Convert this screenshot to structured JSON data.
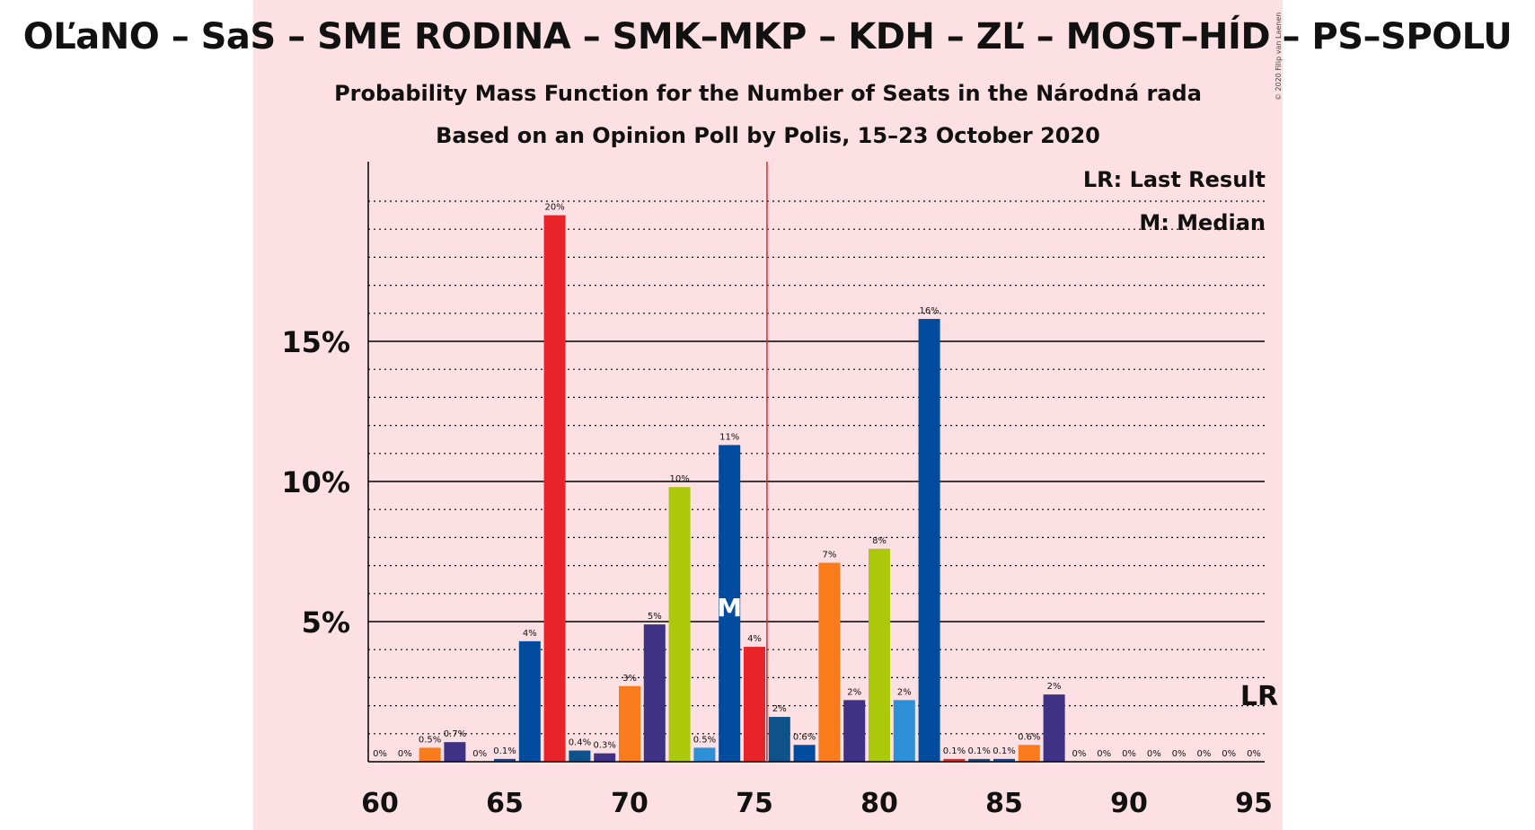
{
  "header": {
    "title": "OĽaNO – SaS – SME RODINA – SMK–MKP – KDH – ZĽ – MOST–HÍD – PS–SPOLU",
    "subtitle_1": "Probability Mass Function for the Number of Seats in the Národná rada",
    "subtitle_2": "Based on an Opinion Poll by Polis, 15–23 October 2020",
    "copyright": "© 2020 Filip van Laenen"
  },
  "legend": {
    "lr": "LR: Last Result",
    "median": "M: Median"
  },
  "colors": {
    "background_panel": "#fde0e3",
    "majority_line": "#e8232a",
    "median_marker": "#ffffff",
    "party_colors": {
      "olano": "#024ca0",
      "sas": "#e8232a",
      "sme_rodina": "#3f3186",
      "smk": "#2d8fd5",
      "kdh": "#f97b1c",
      "zl": "#acc80a",
      "most": "#0e5289"
    }
  },
  "chart_data": {
    "type": "bar",
    "xlabel": "",
    "ylabel": "",
    "x_ticks": [
      "60",
      "65",
      "70",
      "75",
      "80",
      "85",
      "90",
      "95"
    ],
    "y_ticks": [
      "5%",
      "10%",
      "15%"
    ],
    "xlim": [
      60,
      95
    ],
    "ylim": [
      0,
      21
    ],
    "grid": "solid major lines at 5%, 10%, 15%; dotted minor lines every 1%",
    "majority_line_at": 76,
    "median_seat": 74,
    "median_label": "M",
    "last_result_seat": 95,
    "last_result_label": "LR",
    "bars": [
      {
        "seats": 60,
        "value": 0.0,
        "label": "0%",
        "color": "#024ca0"
      },
      {
        "seats": 61,
        "value": 0.0,
        "label": "0%",
        "color": "#024ca0"
      },
      {
        "seats": 62,
        "value": 0.5,
        "label": "0.5%",
        "color": "#f97b1c"
      },
      {
        "seats": 63,
        "value": 0.7,
        "label": "0.7%",
        "color": "#3f3186"
      },
      {
        "seats": 64,
        "value": 0.0,
        "label": "0%",
        "color": "#024ca0"
      },
      {
        "seats": 65,
        "value": 0.1,
        "label": "0.1%",
        "color": "#024ca0"
      },
      {
        "seats": 66,
        "value": 4.3,
        "label": "4%",
        "color": "#024ca0"
      },
      {
        "seats": 67,
        "value": 19.5,
        "label": "20%",
        "color": "#e8232a"
      },
      {
        "seats": 68,
        "value": 0.4,
        "label": "0.4%",
        "color": "#0e5289"
      },
      {
        "seats": 69,
        "value": 0.3,
        "label": "0.3%",
        "color": "#3f3186"
      },
      {
        "seats": 70,
        "value": 2.7,
        "label": "3%",
        "color": "#f97b1c"
      },
      {
        "seats": 71,
        "value": 4.9,
        "label": "5%",
        "color": "#3f3186"
      },
      {
        "seats": 72,
        "value": 9.8,
        "label": "10%",
        "color": "#acc80a"
      },
      {
        "seats": 73,
        "value": 0.5,
        "label": "0.5%",
        "color": "#2d8fd5"
      },
      {
        "seats": 74,
        "value": 11.3,
        "label": "11%",
        "color": "#024ca0"
      },
      {
        "seats": 75,
        "value": 4.1,
        "label": "4%",
        "color": "#e8232a"
      },
      {
        "seats": 76,
        "value": 1.6,
        "label": "2%",
        "color": "#0e5289"
      },
      {
        "seats": 77,
        "value": 0.6,
        "label": "0.6%",
        "color": "#024ca0"
      },
      {
        "seats": 78,
        "value": 7.1,
        "label": "7%",
        "color": "#f97b1c"
      },
      {
        "seats": 79,
        "value": 2.2,
        "label": "2%",
        "color": "#3f3186"
      },
      {
        "seats": 80,
        "value": 7.6,
        "label": "8%",
        "color": "#acc80a"
      },
      {
        "seats": 81,
        "value": 2.2,
        "label": "2%",
        "color": "#2d8fd5"
      },
      {
        "seats": 82,
        "value": 15.8,
        "label": "16%",
        "color": "#024ca0"
      },
      {
        "seats": 83,
        "value": 0.1,
        "label": "0.1%",
        "color": "#e8232a"
      },
      {
        "seats": 84,
        "value": 0.1,
        "label": "0.1%",
        "color": "#0e5289"
      },
      {
        "seats": 85,
        "value": 0.1,
        "label": "0.1%",
        "color": "#024ca0"
      },
      {
        "seats": 86,
        "value": 0.6,
        "label": "0.6%",
        "color": "#f97b1c"
      },
      {
        "seats": 87,
        "value": 2.4,
        "label": "2%",
        "color": "#3f3186"
      },
      {
        "seats": 88,
        "value": 0.0,
        "label": "0%",
        "color": "#024ca0"
      },
      {
        "seats": 89,
        "value": 0.0,
        "label": "0%",
        "color": "#024ca0"
      },
      {
        "seats": 90,
        "value": 0.0,
        "label": "0%",
        "color": "#024ca0"
      },
      {
        "seats": 91,
        "value": 0.0,
        "label": "0%",
        "color": "#024ca0"
      },
      {
        "seats": 92,
        "value": 0.0,
        "label": "0%",
        "color": "#024ca0"
      },
      {
        "seats": 93,
        "value": 0.0,
        "label": "0%",
        "color": "#024ca0"
      },
      {
        "seats": 94,
        "value": 0.0,
        "label": "0%",
        "color": "#024ca0"
      },
      {
        "seats": 95,
        "value": 0.0,
        "label": "0%",
        "color": "#024ca0"
      }
    ]
  }
}
